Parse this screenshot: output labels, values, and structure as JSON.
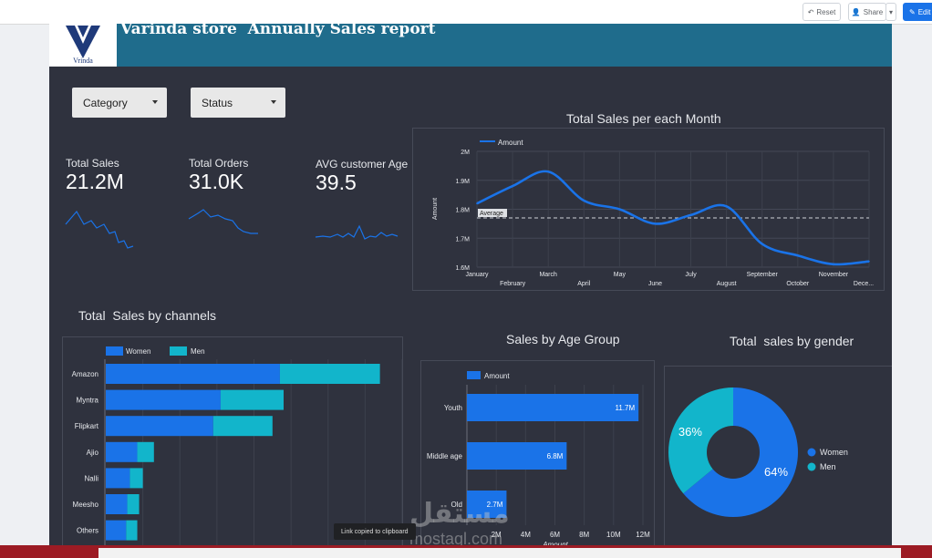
{
  "toolbar": {
    "reset_label": "Reset",
    "share_label": "Share",
    "edit_label": "Edit"
  },
  "header": {
    "logo_text": "Vrinda",
    "title": "Varinda store  Annually Sales report"
  },
  "filters": [
    {
      "label": "Category"
    },
    {
      "label": "Status"
    }
  ],
  "kpis": [
    {
      "label": "Total Sales",
      "value": "21.2M"
    },
    {
      "label": "Total Orders",
      "value": "31.0K"
    },
    {
      "label": "AVG customer Age",
      "value": "39.5"
    }
  ],
  "colors": {
    "background": "#2f323e",
    "header": "#1f6c8c",
    "women": "#1a73e8",
    "men": "#12b5cb",
    "line": "#1a73e8"
  },
  "monthly_chart": {
    "title": "Total Sales per each Month",
    "legend": "Amount",
    "ylabel": "Amount",
    "average_label": "Average",
    "y_ticks": [
      "2M",
      "1.9M",
      "1.8M",
      "1.7M",
      "1.6M"
    ],
    "x_ticks_top": [
      "January",
      "March",
      "May",
      "July",
      "September",
      "November"
    ],
    "x_ticks_bottom": [
      "February",
      "April",
      "June",
      "August",
      "October",
      "Dece..."
    ]
  },
  "channels_chart": {
    "title": "Total  Sales by channels",
    "legend": [
      "Women",
      "Men"
    ],
    "categories": [
      "Amazon",
      "Myntra",
      "Flipkart",
      "Ajio",
      "Nalli",
      "Meesho",
      "Others"
    ]
  },
  "age_chart": {
    "title": "Sales by Age Group",
    "legend": "Amount",
    "categories": [
      "Youth",
      "Middle age",
      "Old"
    ],
    "value_labels": [
      "11.7M",
      "6.8M",
      "2.7M"
    ],
    "x_ticks": [
      "2M",
      "4M",
      "6M",
      "8M",
      "10M",
      "12M"
    ],
    "xlabel": "Amount"
  },
  "gender_chart": {
    "title": "Total  sales by gender",
    "legend": [
      "Women",
      "Men"
    ],
    "pct_labels": [
      "64%",
      "36%"
    ]
  },
  "chart_data": [
    {
      "type": "line",
      "title": "Total Sales per each Month",
      "x": [
        "January",
        "February",
        "March",
        "April",
        "May",
        "June",
        "July",
        "August",
        "September",
        "October",
        "November",
        "December"
      ],
      "series": [
        {
          "name": "Amount",
          "values": [
            1.82,
            1.88,
            1.93,
            1.83,
            1.8,
            1.75,
            1.78,
            1.81,
            1.68,
            1.64,
            1.61,
            1.62
          ]
        }
      ],
      "average": 1.77,
      "ylim": [
        1.6,
        2.0
      ],
      "ylabel": "Amount",
      "units": "M"
    },
    {
      "type": "bar",
      "orientation": "horizontal",
      "stacked": true,
      "title": "Total  Sales by channels",
      "categories": [
        "Amazon",
        "Myntra",
        "Flipkart",
        "Ajio",
        "Nalli",
        "Meesho",
        "Others"
      ],
      "series": [
        {
          "name": "Women",
          "values": [
            4.7,
            3.1,
            2.9,
            0.85,
            0.65,
            0.58,
            0.55
          ]
        },
        {
          "name": "Men",
          "values": [
            2.7,
            1.7,
            1.6,
            0.45,
            0.35,
            0.32,
            0.3
          ]
        }
      ],
      "xlim": [
        0,
        8
      ],
      "units": "M"
    },
    {
      "type": "bar",
      "orientation": "horizontal",
      "title": "Sales by Age Group",
      "categories": [
        "Youth",
        "Middle age",
        "Old"
      ],
      "values": [
        11.7,
        6.8,
        2.7
      ],
      "xlim": [
        0,
        12
      ],
      "xlabel": "Amount",
      "units": "M"
    },
    {
      "type": "pie",
      "donut": true,
      "title": "Total  sales by gender",
      "categories": [
        "Women",
        "Men"
      ],
      "values": [
        64,
        36
      ],
      "units": "%"
    }
  ],
  "overlays": {
    "toast": "Link copied to clipboard",
    "watermark_arabic": "مستقل",
    "watermark_latin": "mostaql.com"
  }
}
